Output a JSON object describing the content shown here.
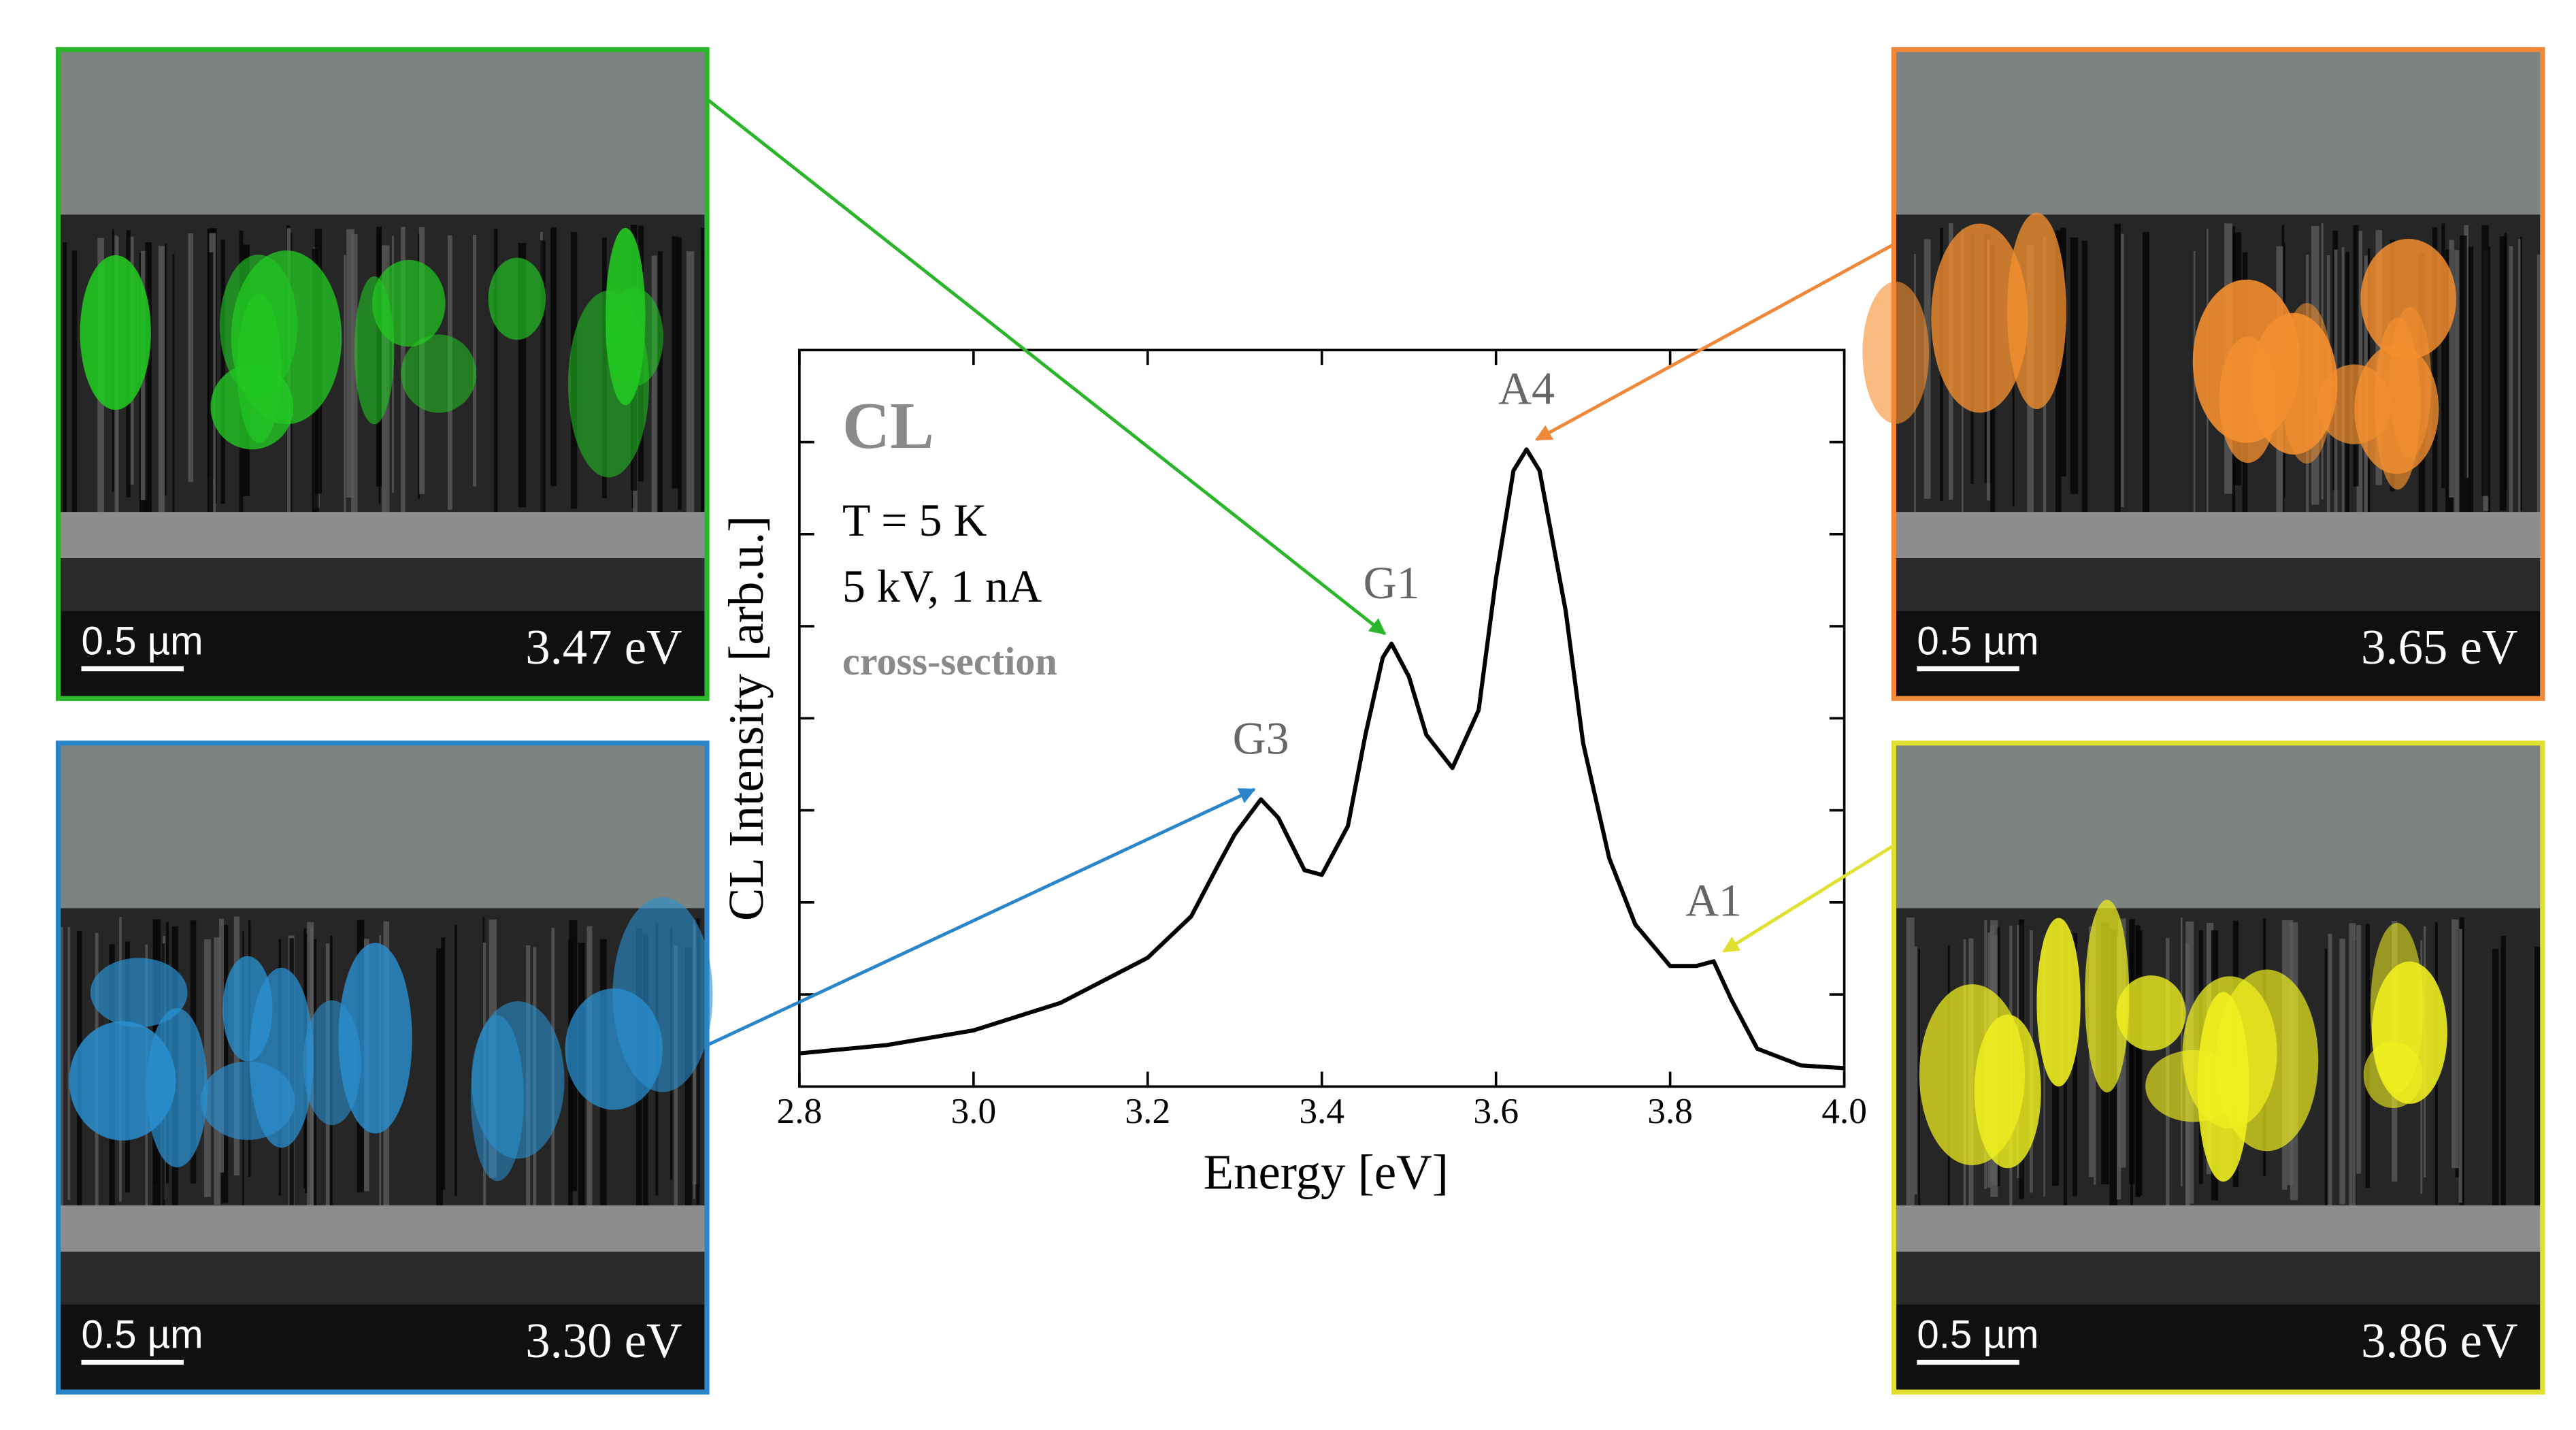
{
  "chart_data": {
    "type": "line",
    "x_label": "Energy [eV]",
    "y_label": "CL Intensity [arb.u.]",
    "annotations": [
      "CL",
      "T = 5 K",
      "5 kV, 1 nA",
      "cross-section"
    ],
    "peaks": [
      {
        "label": "G3",
        "x": 3.33
      },
      {
        "label": "G1",
        "x": 3.48
      },
      {
        "label": "A4",
        "x": 3.635
      },
      {
        "label": "A1",
        "x": 3.85
      }
    ],
    "x": [
      2.8,
      2.9,
      3.0,
      3.1,
      3.2,
      3.25,
      3.28,
      3.3,
      3.33,
      3.35,
      3.38,
      3.4,
      3.43,
      3.45,
      3.47,
      3.48,
      3.5,
      3.52,
      3.55,
      3.58,
      3.6,
      3.62,
      3.635,
      3.65,
      3.68,
      3.7,
      3.73,
      3.76,
      3.8,
      3.83,
      3.85,
      3.87,
      3.9,
      3.95,
      4.0
    ],
    "values": [
      0.36,
      0.45,
      0.61,
      0.91,
      1.4,
      1.85,
      2.39,
      2.74,
      3.12,
      2.92,
      2.35,
      2.3,
      2.83,
      3.82,
      4.66,
      4.81,
      4.45,
      3.82,
      3.46,
      4.09,
      5.52,
      6.69,
      6.92,
      6.69,
      5.17,
      3.73,
      2.48,
      1.76,
      1.31,
      1.31,
      1.36,
      0.95,
      0.41,
      0.23,
      0.2
    ],
    "color": "#000000",
    "xlim": [
      2.8,
      4.0
    ],
    "xticks": [
      2.8,
      {
        "value": 3,
        "label": "3.0"
      },
      3.2,
      3.4,
      3.6,
      3.8,
      {
        "value": 4,
        "label": "4.0"
      }
    ],
    "ylim": [
      0,
      8
    ],
    "yticks": [
      1,
      2,
      3,
      4,
      5,
      6,
      7
    ]
  },
  "panels": [
    {
      "energy": "3.47 eV",
      "scale": "0.5 µm",
      "color": "#22c822",
      "border": "#2ab52a",
      "corner": "top-left",
      "target": 1
    },
    {
      "energy": "3.30 eV",
      "scale": "0.5 µm",
      "color": "#2a90d0",
      "border": "#2a86c8",
      "corner": "bottom-left",
      "target": 0
    },
    {
      "energy": "3.65 eV",
      "scale": "0.5 µm",
      "color": "#f59030",
      "border": "#f0883a",
      "corner": "top-right",
      "target": 2
    },
    {
      "energy": "3.86 eV",
      "scale": "0.5 µm",
      "color": "#f0f020",
      "border": "#e0e030",
      "corner": "bottom-right",
      "target": 3
    }
  ]
}
